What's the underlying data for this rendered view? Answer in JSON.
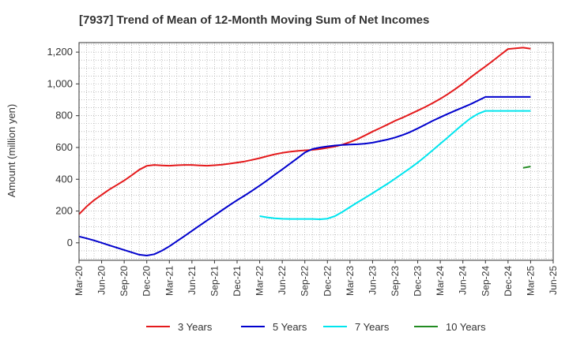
{
  "chart_data": {
    "type": "line",
    "title": "[7937]  Trend of Mean of 12-Month Moving Sum of Net Incomes",
    "xlabel": "",
    "ylabel": "Amount (million yen)",
    "ylim": [
      -110,
      1260
    ],
    "yticks": [
      0,
      200,
      400,
      600,
      800,
      1000,
      1200
    ],
    "ytick_labels": [
      "0",
      "200",
      "400",
      "600",
      "800",
      "1,000",
      "1,200"
    ],
    "xlim": [
      0,
      63
    ],
    "xticks": [
      0,
      3,
      6,
      9,
      12,
      15,
      18,
      21,
      24,
      27,
      30,
      33,
      36,
      39,
      42,
      45,
      48,
      51,
      54,
      57,
      60,
      63
    ],
    "xtick_labels": [
      "Mar-20",
      "Jun-20",
      "Sep-20",
      "Dec-20",
      "Mar-21",
      "Jun-21",
      "Sep-21",
      "Dec-21",
      "Mar-22",
      "Jun-22",
      "Sep-22",
      "Dec-22",
      "Mar-23",
      "Jun-23",
      "Sep-23",
      "Dec-23",
      "Mar-24",
      "Jun-24",
      "Sep-24",
      "Dec-24",
      "Mar-25",
      "Jun-25"
    ],
    "grid": true,
    "legend_position": "bottom",
    "series": [
      {
        "name": "3 Years",
        "color": "#e41a1c",
        "x": [
          0,
          1,
          2,
          3,
          4,
          5,
          6,
          7,
          8,
          9,
          10,
          11,
          12,
          13,
          14,
          15,
          16,
          17,
          18,
          19,
          20,
          21,
          22,
          23,
          24,
          25,
          26,
          27,
          28,
          29,
          30,
          31,
          32,
          33,
          34,
          35,
          36,
          37,
          38,
          39,
          40,
          41,
          42,
          43,
          44,
          45,
          46,
          47,
          48,
          49,
          50,
          51,
          52,
          53,
          54,
          55,
          56,
          57,
          58,
          59,
          60
        ],
        "y": [
          180,
          228,
          268,
          302,
          335,
          363,
          392,
          425,
          460,
          484,
          490,
          487,
          485,
          488,
          490,
          490,
          487,
          485,
          488,
          492,
          498,
          505,
          512,
          522,
          533,
          545,
          557,
          566,
          573,
          578,
          582,
          585,
          590,
          598,
          606,
          618,
          634,
          653,
          676,
          700,
          722,
          745,
          768,
          788,
          810,
          832,
          855,
          880,
          906,
          936,
          968,
          1002,
          1040,
          1076,
          1110,
          1146,
          1183,
          1220,
          1224,
          1228,
          1222
        ]
      },
      {
        "name": "5 Years",
        "color": "#0000cd",
        "x": [
          0,
          1,
          2,
          3,
          4,
          5,
          6,
          7,
          8,
          9,
          10,
          11,
          12,
          13,
          14,
          15,
          16,
          17,
          18,
          19,
          20,
          21,
          22,
          23,
          24,
          25,
          26,
          27,
          28,
          29,
          30,
          31,
          32,
          33,
          34,
          35,
          36,
          37,
          38,
          39,
          40,
          41,
          42,
          43,
          44,
          45,
          46,
          47,
          48,
          49,
          50,
          51,
          52,
          53,
          54,
          55,
          56,
          57,
          58,
          59,
          60
        ],
        "y": [
          40,
          28,
          15,
          0,
          -15,
          -30,
          -45,
          -60,
          -75,
          -80,
          -72,
          -50,
          -22,
          10,
          42,
          75,
          108,
          140,
          172,
          205,
          237,
          268,
          297,
          328,
          360,
          393,
          428,
          462,
          497,
          532,
          568,
          590,
          600,
          607,
          612,
          616,
          618,
          620,
          624,
          630,
          640,
          650,
          663,
          678,
          697,
          720,
          744,
          768,
          790,
          812,
          832,
          852,
          872,
          895,
          918,
          918,
          918,
          918,
          918,
          918,
          918
        ]
      },
      {
        "name": "7 Years",
        "color": "#00e5ee",
        "x": [
          24,
          25,
          26,
          27,
          28,
          29,
          30,
          31,
          32,
          33,
          34,
          35,
          36,
          37,
          38,
          39,
          40,
          41,
          42,
          43,
          44,
          45,
          46,
          47,
          48,
          49,
          50,
          51,
          52,
          53,
          54,
          55,
          56,
          57,
          58,
          59,
          60
        ],
        "y": [
          168,
          160,
          154,
          151,
          150,
          150,
          150,
          150,
          148,
          152,
          168,
          195,
          225,
          255,
          283,
          312,
          342,
          372,
          404,
          437,
          470,
          505,
          543,
          583,
          623,
          664,
          705,
          746,
          783,
          812,
          830,
          830,
          830,
          830,
          830,
          830,
          830
        ]
      },
      {
        "name": "10 Years",
        "color": "#228b22",
        "x": [
          59,
          60
        ],
        "y": [
          472,
          480
        ]
      }
    ]
  }
}
